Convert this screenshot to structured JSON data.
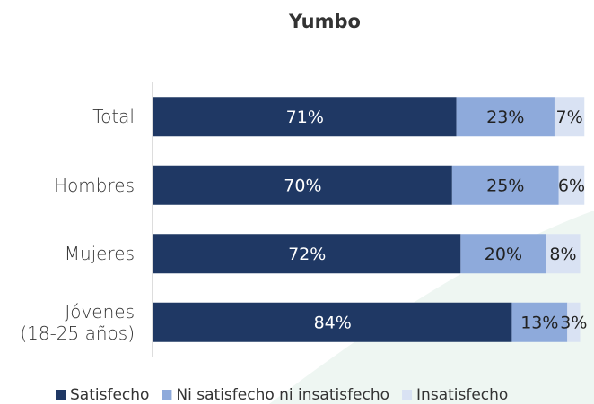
{
  "chart_data": {
    "type": "stacked-bar-horizontal",
    "title": "Yumbo",
    "categories": [
      "Total",
      "Hombres",
      "Mujeres",
      "Jóvenes\n(18-25 años)"
    ],
    "series": [
      {
        "name": "Satisfecho",
        "color": "#1f3864",
        "values": [
          71,
          70,
          72,
          84
        ],
        "value_labels": [
          "71%",
          "70%",
          "72%",
          "84%"
        ]
      },
      {
        "name": "Ni satisfecho ni insatisfecho",
        "color": "#8eaadb",
        "values": [
          23,
          25,
          20,
          13
        ],
        "value_labels": [
          "23%",
          "25%",
          "20%",
          "13%"
        ]
      },
      {
        "name": "Insatisfecho",
        "color": "#d9e2f3",
        "values": [
          7,
          6,
          8,
          3
        ],
        "value_labels": [
          "7%",
          "6%",
          "8%",
          "3%"
        ]
      }
    ],
    "legend": "bottom"
  }
}
